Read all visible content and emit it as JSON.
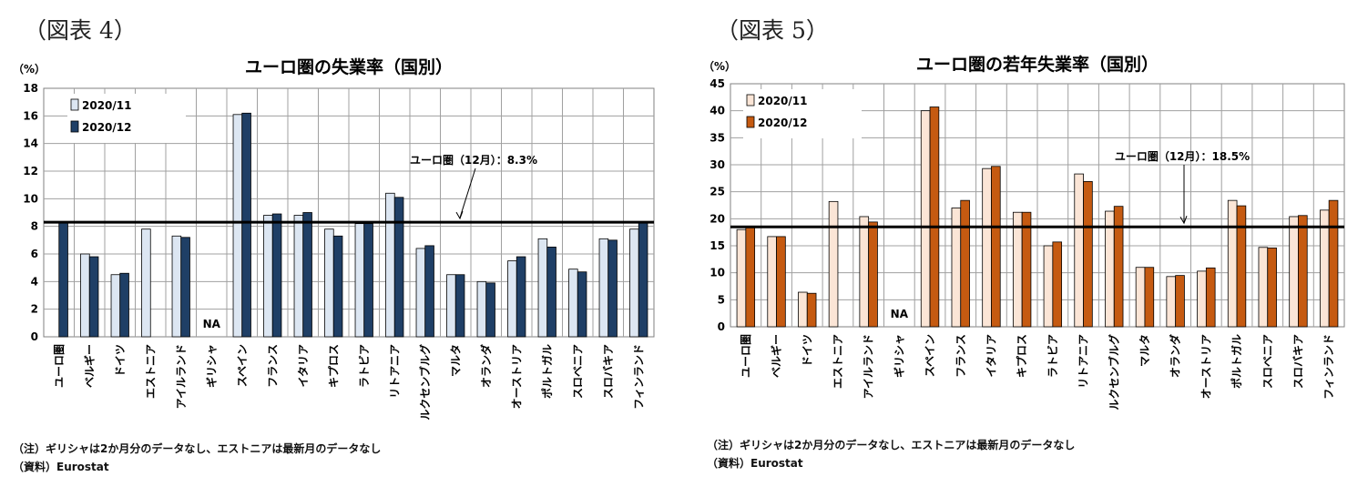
{
  "figures": [
    {
      "label": "（図表 4）",
      "note": "（注）ギリシャは2か月分のデータなし、エストニアは最新月のデータなし",
      "source": "（資料）Eurostat"
    },
    {
      "label": "（図表 5）",
      "note": "（注）ギリシャは2か月分のデータなし、エストニアは最新月のデータなし",
      "source": "（資料）Eurostat"
    }
  ],
  "chart_data": [
    {
      "type": "bar",
      "title": "ユーロ圏の失業率（国別）",
      "ylabel": "（%）",
      "ylim": [
        0,
        18
      ],
      "yticks": [
        0,
        2,
        4,
        6,
        8,
        10,
        12,
        14,
        16,
        18
      ],
      "grid": true,
      "legend_position": "top-left",
      "categories": [
        "ユーロ圏",
        "ベルギー",
        "ドイツ",
        "エストニア",
        "アイルランド",
        "ギリシャ",
        "スペイン",
        "フランス",
        "イタリア",
        "キプロス",
        "ラトビア",
        "リトアニア",
        "ルクセンブルグ",
        "マルタ",
        "オランダ",
        "オーストリア",
        "ポルトガル",
        "スロベニア",
        "スロバキア",
        "フィンランド"
      ],
      "series": [
        {
          "name": "2020/11",
          "color": "#dce6f2",
          "values": [
            null,
            6.0,
            4.5,
            7.8,
            7.3,
            null,
            16.1,
            8.8,
            8.8,
            7.8,
            8.2,
            10.4,
            6.4,
            4.5,
            4.0,
            5.5,
            7.1,
            4.9,
            7.1,
            7.8
          ]
        },
        {
          "name": "2020/12",
          "color": "#1f3f66",
          "values": [
            8.3,
            5.8,
            4.6,
            null,
            7.2,
            null,
            16.2,
            8.9,
            9.0,
            7.3,
            8.2,
            10.1,
            6.6,
            4.5,
            3.9,
            5.8,
            6.5,
            4.7,
            7.0,
            8.3
          ]
        }
      ],
      "na_category": "ギリシャ",
      "na_label": "NA",
      "reference_value": 8.3,
      "annotation": "ユーロ圏（12月）：8.3%"
    },
    {
      "type": "bar",
      "title": "ユーロ圏の若年失業率（国別）",
      "ylabel": "（%）",
      "ylim": [
        0,
        45
      ],
      "yticks": [
        0,
        5,
        10,
        15,
        20,
        25,
        30,
        35,
        40,
        45
      ],
      "grid": true,
      "legend_position": "top-left",
      "categories": [
        "ユーロ圏",
        "ベルギー",
        "ドイツ",
        "エストニア",
        "アイルランド",
        "ギリシャ",
        "スペイン",
        "フランス",
        "イタリア",
        "キプロス",
        "ラトビア",
        "リトアニア",
        "ルクセンブルグ",
        "マルタ",
        "オランダ",
        "オーストリア",
        "ポルトガル",
        "スロベニア",
        "スロバキア",
        "フィンランド"
      ],
      "series": [
        {
          "name": "2020/11",
          "color": "#fbe5d6",
          "values": [
            18.0,
            16.7,
            6.4,
            23.2,
            20.4,
            null,
            40.0,
            22.0,
            29.3,
            21.2,
            15.0,
            28.3,
            21.4,
            11.0,
            9.3,
            10.3,
            23.4,
            14.7,
            20.4,
            21.6
          ]
        },
        {
          "name": "2020/12",
          "color": "#c55a11",
          "values": [
            18.5,
            16.7,
            6.2,
            null,
            19.4,
            null,
            40.7,
            23.4,
            29.7,
            21.2,
            15.7,
            26.9,
            22.3,
            11.0,
            9.5,
            10.9,
            22.4,
            14.6,
            20.6,
            23.4
          ]
        }
      ],
      "na_category": "ギリシャ",
      "na_label": "NA",
      "reference_value": 18.5,
      "annotation": "ユーロ圏（12月）：18.5%"
    }
  ]
}
